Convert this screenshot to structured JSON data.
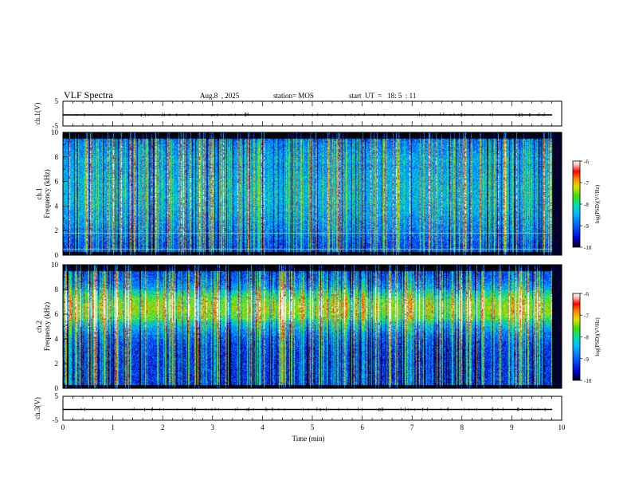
{
  "header": {
    "title": "VLF Spectra",
    "date": "Aug.8  , 2025",
    "station": "station= MOS",
    "start": "start  UT  =   18: 5  : 11"
  },
  "colors": {
    "scale": [
      "#000000",
      "#0000d0",
      "#0060ff",
      "#00c0ff",
      "#00e0a0",
      "#40e000",
      "#e0e000",
      "#ff8000",
      "#ff0000",
      "#ffb0b0",
      "#ffffff"
    ]
  },
  "chart_data": [
    {
      "type": "line",
      "name": "ch1-waveform",
      "ylabel": "ch.1(V)",
      "ylim": [
        -5,
        5
      ],
      "yticks": [
        "5",
        "-5"
      ],
      "x": [
        0,
        10
      ],
      "y": [
        -0.5,
        -0.5
      ]
    },
    {
      "type": "heatmap",
      "name": "ch1-spectrogram",
      "ylabel": "ch.1\nFrequency (kHz)",
      "ylim": [
        0,
        10
      ],
      "yticks": [
        "0",
        "2",
        "4",
        "6",
        "8",
        "10"
      ],
      "xlim": [
        0,
        10
      ],
      "colorbar": {
        "label": "log(PSD)(V²/Hz)",
        "range": [
          -10,
          -6
        ],
        "ticks": [
          "-6",
          "-7",
          "-8",
          "-9",
          "-10"
        ]
      },
      "dominant_band_khz": [
        0.5,
        9.5
      ]
    },
    {
      "type": "heatmap",
      "name": "ch2-spectrogram",
      "ylabel": "ch.2\nFrequency (kHz)",
      "ylim": [
        0,
        10
      ],
      "yticks": [
        "0",
        "2",
        "4",
        "6",
        "8",
        "10"
      ],
      "xlim": [
        0,
        10
      ],
      "colorbar": {
        "label": "log(PSD)(V²/Hz)",
        "range": [
          -10,
          -6
        ],
        "ticks": [
          "-6",
          "-7",
          "-8",
          "-9",
          "-10"
        ]
      },
      "dominant_band_khz": [
        4.5,
        8.5
      ]
    },
    {
      "type": "line",
      "name": "ch3-waveform",
      "ylabel": "ch.3(V)",
      "ylim": [
        -5,
        5
      ],
      "yticks": [
        "5",
        "-5"
      ],
      "x": [
        0,
        10
      ],
      "y": [
        -0.5,
        -0.5
      ]
    }
  ],
  "xaxis": {
    "label": "Time  (min)",
    "ticks": [
      "0",
      "1",
      "2",
      "3",
      "4",
      "5",
      "6",
      "7",
      "8",
      "9",
      "10"
    ],
    "xlim": [
      0,
      10
    ]
  }
}
